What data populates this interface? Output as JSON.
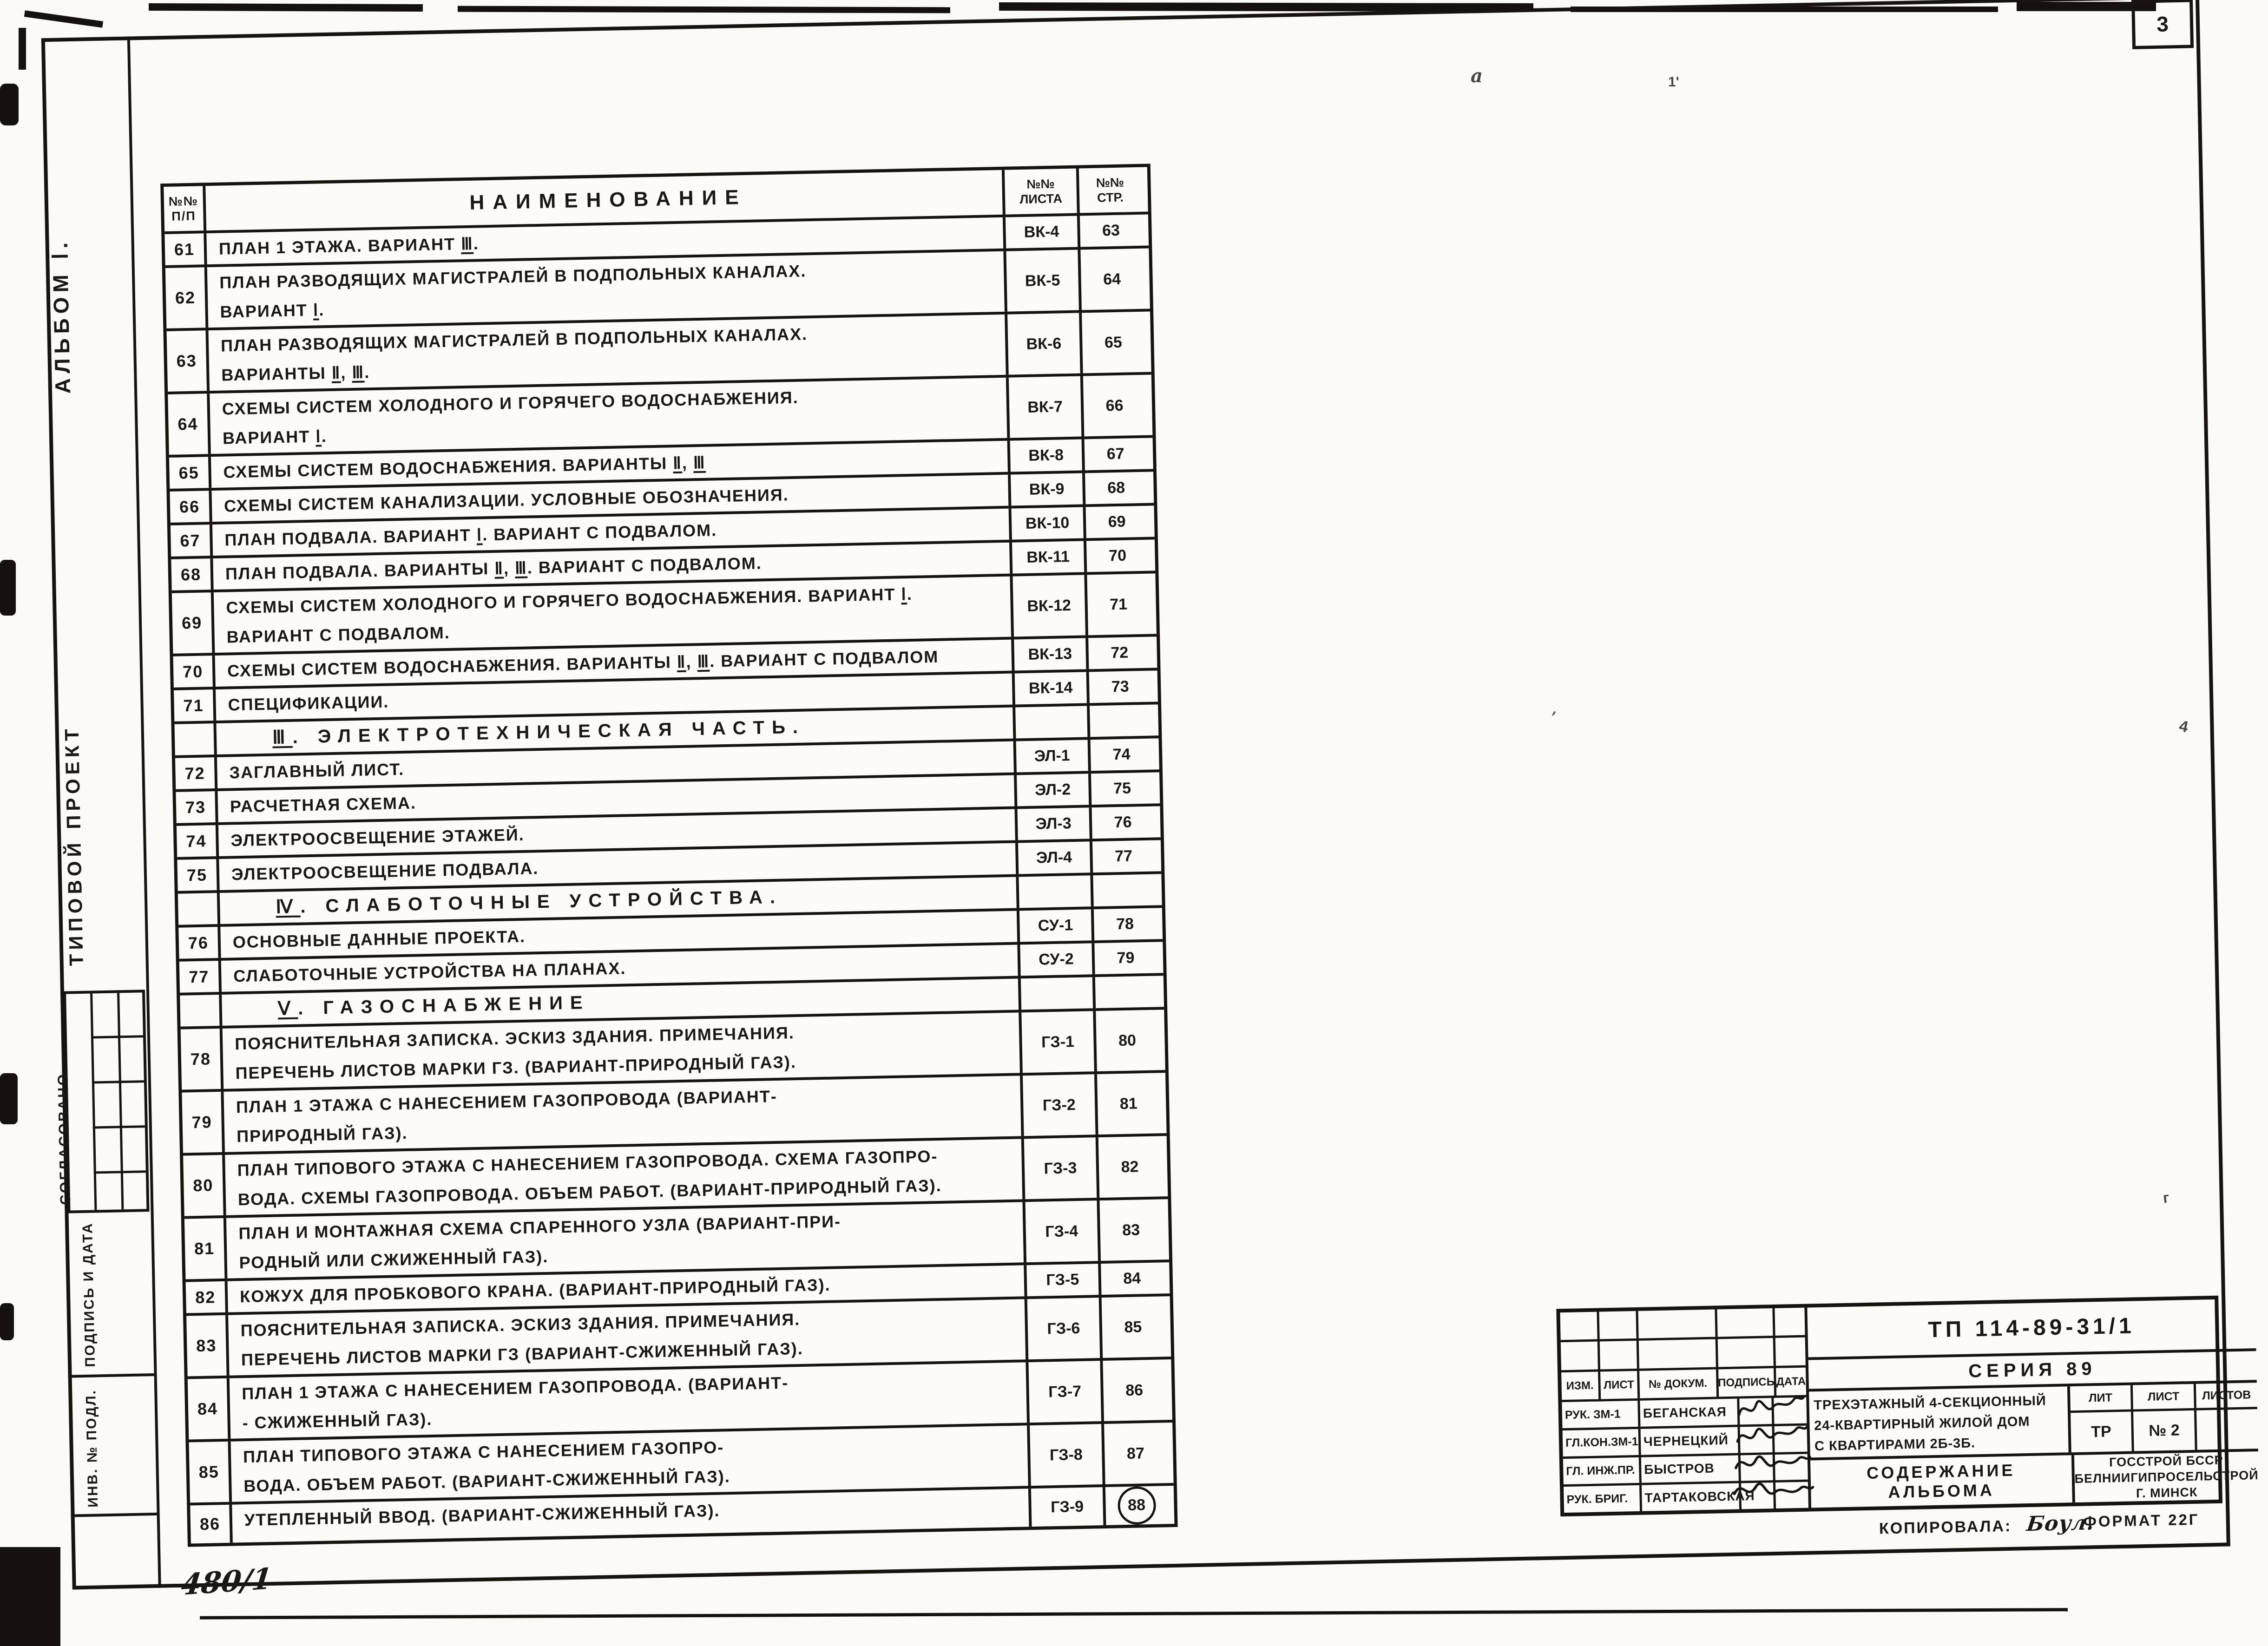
{
  "page": {
    "number": "3",
    "inventory_mark": "480/1",
    "copied_label": "Копировала:",
    "copied_by": "Боул.",
    "format": "Формат 22Г"
  },
  "margin": {
    "album": "Альбом Ⅰ.",
    "project_type": "Типовой проект",
    "agreed_stamp": "Согласовано",
    "signature_date": "Подпись и дата",
    "inventory": "Инв. № подл."
  },
  "table": {
    "headers": {
      "num": "№№\nп/п",
      "name": "Наименование",
      "sheet": "№№\nлиста",
      "page": "№№\nстр."
    },
    "rows": [
      {
        "n": "61",
        "text": "План 1 этажа.    Вариант Ⅲ.",
        "sheet": "ВК-4",
        "page": "63"
      },
      {
        "n": "62",
        "text": "План разводящих магистралей в подпольных каналах.\nВариант Ⅰ.",
        "sheet": "ВК-5",
        "page": "64"
      },
      {
        "n": "63",
        "text": "План разводящих магистралей в подпольных каналах.\nВарианты Ⅱ, Ⅲ.",
        "sheet": "ВК-6",
        "page": "65"
      },
      {
        "n": "64",
        "text": "Схемы систем холодного и горячего водоснабжения.\nВариант Ⅰ.",
        "sheet": "ВК-7",
        "page": "66"
      },
      {
        "n": "65",
        "text": "Схемы систем водоснабжения. Варианты Ⅱ, Ⅲ",
        "sheet": "ВК-8",
        "page": "67"
      },
      {
        "n": "66",
        "text": "Схемы систем канализации. Условные обозначения.",
        "sheet": "ВК-9",
        "page": "68"
      },
      {
        "n": "67",
        "text": "План подвала. Вариант Ⅰ. Вариант с подвалом.",
        "sheet": "ВК-10",
        "page": "69"
      },
      {
        "n": "68",
        "text": "План подвала. Варианты Ⅱ, Ⅲ. Вариант с подвалом.",
        "sheet": "ВК-11",
        "page": "70"
      },
      {
        "n": "69",
        "text": "Схемы систем холодного и горячего водоснабжения. Вариант Ⅰ.\nВариант с подвалом.",
        "sheet": "ВК-12",
        "page": "71"
      },
      {
        "n": "70",
        "text": "Схемы систем водоснабжения. Варианты Ⅱ, Ⅲ. Вариант с подвалом",
        "sheet": "ВК-13",
        "page": "72"
      },
      {
        "n": "71",
        "text": "Спецификации.",
        "sheet": "ВК-14",
        "page": "73"
      },
      {
        "section": "Ⅲ.  Электротехническая часть."
      },
      {
        "n": "72",
        "text": "Заглавный лист.",
        "sheet": "ЭЛ-1",
        "page": "74"
      },
      {
        "n": "73",
        "text": "Расчетная схема.",
        "sheet": "ЭЛ-2",
        "page": "75"
      },
      {
        "n": "74",
        "text": "Электроосвещение этажей.",
        "sheet": "ЭЛ-3",
        "page": "76"
      },
      {
        "n": "75",
        "text": "Электроосвещение подвала.",
        "sheet": "ЭЛ-4",
        "page": "77"
      },
      {
        "section": "Ⅳ. Слаботочные устройства."
      },
      {
        "n": "76",
        "text": "Основные данные проекта.",
        "sheet": "СУ-1",
        "page": "78"
      },
      {
        "n": "77",
        "text": "Слаботочные устройства на планах.",
        "sheet": "СУ-2",
        "page": "79"
      },
      {
        "section": "Ⅴ.  Газоснабжение"
      },
      {
        "n": "78",
        "text": "Пояснительная записка. Эскиз здания. Примечания.\nПеречень листов марки ГЗ. (Вариант-природный газ).",
        "sheet": "ГЗ-1",
        "page": "80"
      },
      {
        "n": "79",
        "text": "План 1 этажа с нанесением газопровода (Вариант-\nприродный газ).",
        "sheet": "ГЗ-2",
        "page": "81"
      },
      {
        "n": "80",
        "text": "План типового этажа с нанесением газопровода. Схема газопро-\nвода. Схемы газопровода. Объем работ. (Вариант-природный газ).",
        "sheet": "ГЗ-3",
        "page": "82"
      },
      {
        "n": "81",
        "text": "План и монтажная схема спаренного узла (Вариант-при-\nродный или сжиженный газ).",
        "sheet": "ГЗ-4",
        "page": "83"
      },
      {
        "n": "82",
        "text": "Кожух для пробкового крана. (Вариант-природный газ).",
        "sheet": "ГЗ-5",
        "page": "84"
      },
      {
        "n": "83",
        "text": "Пояснительная записка. Эскиз здания. Примечания.\nПеречень листов марки ГЗ (Вариант-сжиженный газ).",
        "sheet": "ГЗ-6",
        "page": "85"
      },
      {
        "n": "84",
        "text": "План 1 этажа с нанесением газопровода. (Вариант-\n- сжиженный газ).",
        "sheet": "ГЗ-7",
        "page": "86"
      },
      {
        "n": "85",
        "text": "План типового этажа с нанесением газопро-\nвода. Объем работ. (Вариант-сжиженный газ).",
        "sheet": "ГЗ-8",
        "page": "87"
      },
      {
        "n": "86",
        "text": "Утепленный ввод. (Вариант-сжиженный газ).",
        "sheet": "ГЗ-9",
        "page": "88",
        "circled": true
      }
    ]
  },
  "title_block": {
    "doc_number": "ТП 114-89-31/1",
    "series": "Серия 89",
    "revision_headers": [
      "Изм.",
      "Лист",
      "№ докум.",
      "Подпись",
      "Дата"
    ],
    "signers": [
      {
        "role": "Рук. ЗМ-1",
        "name": "Беганская"
      },
      {
        "role": "Гл.кон.ЗМ-1",
        "name": "Чернецкий"
      },
      {
        "role": "Гл. инж.пр.",
        "name": "Быстров"
      },
      {
        "role": "Рук. бриг.",
        "name": "Тартаковская"
      }
    ],
    "project_name": "Трехэтажный 4-секционный\n24-квартирный жилой дом\nс квартирами 2Б-3Б.",
    "lit_header": "Лит",
    "sheet_header": "Лист",
    "sheets_header": "Листов",
    "lit_value": "ТР",
    "sheet_value": "№ 2",
    "sheets_value": "",
    "content_title": "Содержание альбома",
    "organization": "Госстрой БССР\nБелниигипросельстрой\nг. Минск"
  }
}
